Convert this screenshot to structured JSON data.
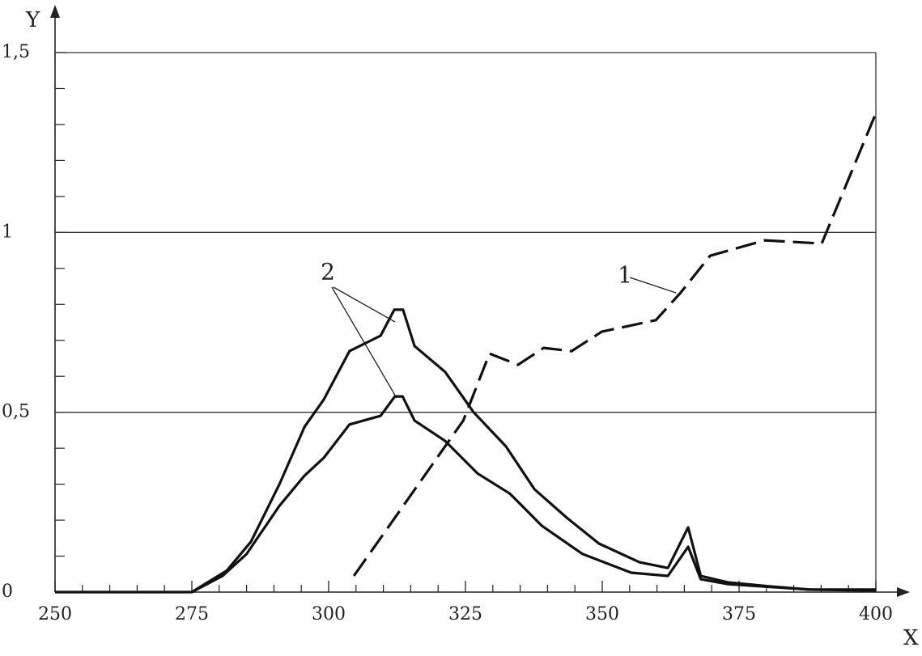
{
  "chart_data": {
    "type": "line",
    "x_label": "X",
    "y_label": "Y",
    "xlim": [
      250,
      400
    ],
    "ylim": [
      0,
      1.5
    ],
    "xticks": [
      250,
      275,
      300,
      325,
      350,
      375,
      400
    ],
    "xminorticks": [
      255,
      260,
      265,
      270,
      280,
      285,
      290,
      295,
      305,
      310,
      315,
      320,
      330,
      335,
      340,
      345,
      355,
      360,
      365,
      370,
      380,
      385,
      390,
      395
    ],
    "yticks": [
      {
        "value": 0,
        "label": "0"
      },
      {
        "value": 0.5,
        "label": "0,5"
      },
      {
        "value": 1,
        "label": "1"
      },
      {
        "value": 1.5,
        "label": "1,5"
      }
    ],
    "yminorticks": [
      0.1,
      0.2,
      0.3,
      0.4,
      0.6,
      0.7,
      0.8,
      0.9,
      1.1,
      1.2,
      1.3,
      1.4
    ],
    "grid": true,
    "series": [
      {
        "color": "#111",
        "dashed": true,
        "x": [
          304.6,
          309.2,
          324.6,
          329.4,
          334.6,
          339.3,
          344.4,
          349.9,
          359.8,
          364.3,
          369.7,
          379.7,
          390.1,
          400
        ],
        "values": [
          0.045,
          0.144,
          0.477,
          0.663,
          0.632,
          0.679,
          0.67,
          0.724,
          0.756,
          0.832,
          0.935,
          0.978,
          0.969,
          1.331
        ]
      },
      {
        "color": "#111",
        "dashed": false,
        "x": [
          250,
          275,
          281.4,
          285.8,
          291,
          295.6,
          299.1,
          303.8,
          309.5,
          312,
          313.6,
          315.7,
          321.3,
          326.5,
          332.4,
          337.6,
          343.5,
          349.4,
          356.8,
          362,
          365.7,
          368,
          373,
          380.5,
          387.9,
          400
        ],
        "values": [
          0,
          0,
          0.06,
          0.14,
          0.3,
          0.46,
          0.535,
          0.67,
          0.713,
          0.785,
          0.785,
          0.684,
          0.612,
          0.5,
          0.405,
          0.286,
          0.207,
          0.135,
          0.083,
          0.067,
          0.18,
          0.045,
          0.027,
          0.016,
          0.007,
          0.007
        ]
      },
      {
        "color": "#111",
        "dashed": false,
        "x": [
          275,
          280.6,
          285,
          291,
          295.6,
          299.1,
          303.8,
          309.5,
          312.1,
          313.5,
          315.7,
          321.3,
          327.2,
          333.1,
          339,
          346.4,
          355.3,
          362,
          365.7,
          368,
          373,
          387.9,
          400
        ],
        "values": [
          0,
          0.045,
          0.106,
          0.24,
          0.324,
          0.373,
          0.466,
          0.49,
          0.544,
          0.544,
          0.477,
          0.42,
          0.33,
          0.274,
          0.184,
          0.106,
          0.054,
          0.045,
          0.126,
          0.036,
          0.022,
          0.007,
          0.004
        ]
      }
    ],
    "annotations": [
      {
        "text": "1"
      },
      {
        "text": "2"
      }
    ]
  }
}
